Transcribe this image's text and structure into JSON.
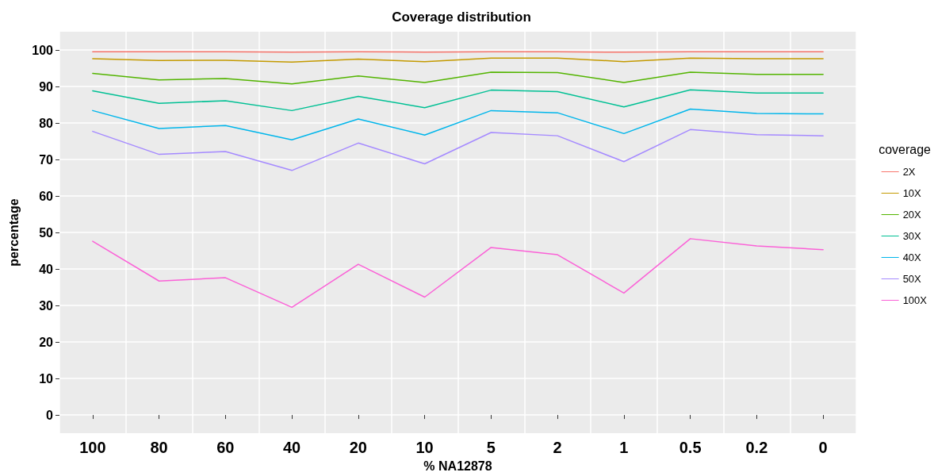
{
  "chart_data": {
    "type": "line",
    "title": "Coverage distribution",
    "xlabel": "% NA12878",
    "ylabel": "percentage",
    "legend_title": "coverage",
    "categories": [
      "100",
      "80",
      "60",
      "40",
      "20",
      "10",
      "5",
      "2",
      "1",
      "0.5",
      "0.2",
      "0"
    ],
    "series": [
      {
        "name": "2X",
        "color": "#f8766d",
        "values": [
          99.5,
          99.5,
          99.5,
          99.4,
          99.5,
          99.4,
          99.5,
          99.5,
          99.4,
          99.5,
          99.5,
          99.5
        ]
      },
      {
        "name": "10X",
        "color": "#c49a00",
        "values": [
          97.6,
          97.1,
          97.2,
          96.7,
          97.5,
          96.8,
          97.8,
          97.8,
          96.8,
          97.8,
          97.6,
          97.6
        ]
      },
      {
        "name": "20X",
        "color": "#53b400",
        "values": [
          93.6,
          91.8,
          92.2,
          90.7,
          92.9,
          91.1,
          93.9,
          93.8,
          91.1,
          93.9,
          93.3,
          93.3
        ]
      },
      {
        "name": "30X",
        "color": "#00c094",
        "values": [
          88.8,
          85.4,
          86.1,
          83.4,
          87.3,
          84.2,
          89.0,
          88.6,
          84.4,
          89.1,
          88.2,
          88.2
        ]
      },
      {
        "name": "40X",
        "color": "#00b6eb",
        "values": [
          83.4,
          78.5,
          79.3,
          75.4,
          81.1,
          76.7,
          83.4,
          82.8,
          77.1,
          83.8,
          82.6,
          82.5
        ]
      },
      {
        "name": "50X",
        "color": "#a58aff",
        "values": [
          77.7,
          71.4,
          72.2,
          67.0,
          74.5,
          68.8,
          77.4,
          76.5,
          69.4,
          78.2,
          76.8,
          76.5
        ]
      },
      {
        "name": "100X",
        "color": "#fb61d7",
        "values": [
          47.6,
          36.7,
          37.6,
          29.5,
          41.3,
          32.3,
          45.9,
          43.9,
          33.4,
          48.3,
          46.3,
          45.3
        ]
      }
    ],
    "ylim": [
      -5,
      105
    ],
    "yticks": [
      0,
      10,
      20,
      30,
      40,
      50,
      60,
      70,
      80,
      90,
      100
    ],
    "grid": true,
    "legend": "right",
    "marker": "none",
    "line_style": "solid"
  }
}
